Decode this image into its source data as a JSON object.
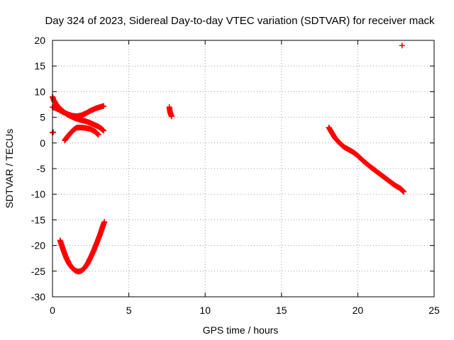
{
  "chart_data": {
    "type": "scatter",
    "title": "Day 324 of 2023, Sidereal Day-to-day VTEC variation (SDTVAR) for receiver mack",
    "xlabel": "GPS time / hours",
    "ylabel": "SDTVAR / TECUs",
    "xlim": [
      0,
      25
    ],
    "ylim": [
      -30,
      20
    ],
    "x_ticks": [
      0,
      5,
      10,
      15,
      20,
      25
    ],
    "y_ticks": [
      -30,
      -25,
      -20,
      -15,
      -10,
      -5,
      0,
      5,
      10,
      15,
      20
    ],
    "x_tick_labels": [
      "0",
      "5",
      "10",
      "15",
      "20",
      "25"
    ],
    "y_tick_labels": [
      "-30",
      "-25",
      "-20",
      "-15",
      "-10",
      "-5",
      "0",
      "5",
      "10",
      "15",
      "20"
    ],
    "grid": true,
    "marker": "+",
    "color": "#ff0000",
    "series": [
      {
        "name": "upper-decreasing-arc",
        "x": [
          0.0,
          0.1,
          0.2,
          0.3,
          0.45,
          0.6,
          0.8,
          1.0,
          1.2,
          1.5,
          1.8,
          2.1,
          2.4,
          2.7,
          3.0,
          3.2,
          3.35
        ],
        "y": [
          9.0,
          8.2,
          7.8,
          7.3,
          6.8,
          6.4,
          5.9,
          5.5,
          5.2,
          4.8,
          4.5,
          4.3,
          4.0,
          3.6,
          3.2,
          2.8,
          2.4
        ]
      },
      {
        "name": "upper-rising-arc",
        "x": [
          0.0,
          0.2,
          0.4,
          0.7,
          1.0,
          1.3,
          1.6,
          1.9,
          2.2,
          2.5,
          2.8,
          3.1,
          3.35
        ],
        "y": [
          7.0,
          6.8,
          6.5,
          6.0,
          5.6,
          5.3,
          5.2,
          5.4,
          5.8,
          6.3,
          6.7,
          7.0,
          7.2
        ]
      },
      {
        "name": "low-rising-arc",
        "x": [
          0.8,
          1.0,
          1.2,
          1.4,
          1.6,
          1.9,
          2.2,
          2.5,
          2.8,
          3.0
        ],
        "y": [
          0.5,
          1.3,
          2.0,
          2.6,
          3.0,
          3.0,
          2.9,
          2.7,
          2.2,
          1.6
        ]
      },
      {
        "name": "start-point",
        "x": [
          0.0,
          0.05
        ],
        "y": [
          2.0,
          2.1
        ]
      },
      {
        "name": "parabola-arc",
        "x": [
          0.5,
          0.7,
          0.9,
          1.1,
          1.3,
          1.5,
          1.7,
          1.9,
          2.1,
          2.3,
          2.5,
          2.7,
          2.9,
          3.1,
          3.3,
          3.4
        ],
        "y": [
          -19.0,
          -20.8,
          -22.4,
          -23.6,
          -24.4,
          -24.9,
          -25.1,
          -24.9,
          -24.4,
          -23.5,
          -22.3,
          -21.0,
          -19.5,
          -18.0,
          -16.2,
          -15.4
        ]
      },
      {
        "name": "short-arc-8h",
        "x": [
          7.65,
          7.7,
          7.75,
          7.8
        ],
        "y": [
          7.0,
          6.0,
          5.6,
          5.2
        ]
      },
      {
        "name": "long-descending-arc",
        "x": [
          18.1,
          18.3,
          18.5,
          18.8,
          19.1,
          19.4,
          19.7,
          20.0,
          20.4,
          20.8,
          21.2,
          21.6,
          22.0,
          22.4,
          22.8,
          23.0
        ],
        "y": [
          3.0,
          2.0,
          1.0,
          0.0,
          -0.8,
          -1.3,
          -1.8,
          -2.5,
          -3.6,
          -4.6,
          -5.5,
          -6.4,
          -7.3,
          -8.2,
          -8.9,
          -9.5
        ]
      },
      {
        "name": "outlier-23h",
        "x": [
          22.9
        ],
        "y": [
          19.0
        ]
      }
    ]
  }
}
